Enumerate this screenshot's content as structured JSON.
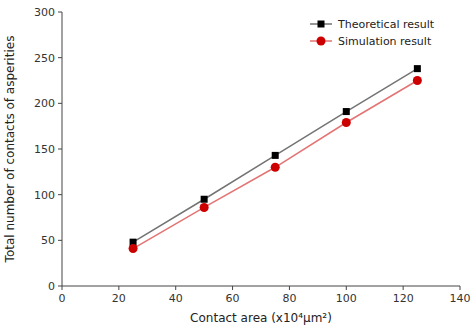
{
  "chart_data": {
    "type": "line",
    "x_label": "Contact area (x10⁴μm²)",
    "y_label": "Total number of contacts of asperities",
    "x": [
      25,
      50,
      75,
      100,
      125
    ],
    "series": [
      {
        "name": "Theoretical result",
        "color": "#000000",
        "marker": "square",
        "values": [
          48,
          95,
          143,
          191,
          238
        ]
      },
      {
        "name": "Simulation result",
        "color": "#cc0000",
        "marker": "circle",
        "values": [
          41,
          86,
          130,
          179,
          225
        ]
      }
    ],
    "xlim": [
      0,
      140
    ],
    "ylim": [
      0,
      300
    ],
    "xticks": [
      0,
      20,
      40,
      60,
      80,
      100,
      120,
      140
    ],
    "yticks": [
      0,
      50,
      100,
      150,
      200,
      250,
      300
    ],
    "grid": false,
    "legend": "upper right"
  }
}
